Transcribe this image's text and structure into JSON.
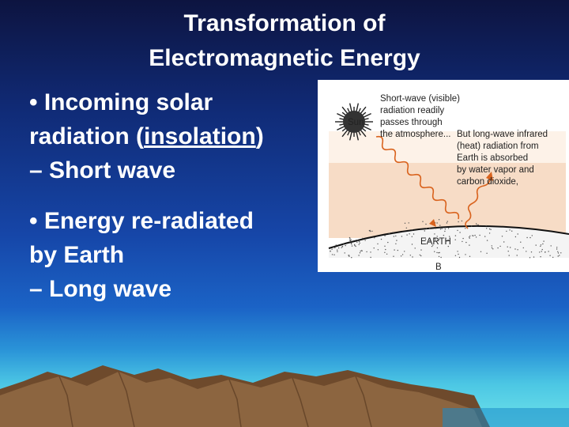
{
  "title": {
    "line1": "Transformation of",
    "line2": "Electromagnetic Energy"
  },
  "bullets": [
    {
      "line1": "• Incoming solar",
      "line2_before": "radiation (",
      "line2_underlined": "insolation",
      "line2_after": ")",
      "line3": "– Short wave"
    },
    {
      "line1": "• Energy re-radiated",
      "line2": "by Earth",
      "line3": "– Long wave"
    }
  ],
  "diagram": {
    "sun_label": "Sun",
    "shortwave_text": [
      "Short-wave (visible)",
      "radiation readily",
      "passes through",
      "the atmosphere..."
    ],
    "longwave_text": [
      "But long-wave infrared",
      "(heat) radiation from",
      "Earth is absorbed",
      "by water vapor and",
      "carbon dioxide,"
    ],
    "earth_label": "EARTH",
    "panel_label": "B",
    "colors": {
      "atmosphere": "#f7dcc6",
      "sky": "#fdf2e8",
      "arrow": "#d9631e",
      "sun": "#222222"
    }
  },
  "background": {
    "colors": {
      "sky_top": "#0d1440",
      "sky_mid": "#1646a8",
      "horizon": "#6fe3ea",
      "mountains": "#8c6540"
    }
  }
}
